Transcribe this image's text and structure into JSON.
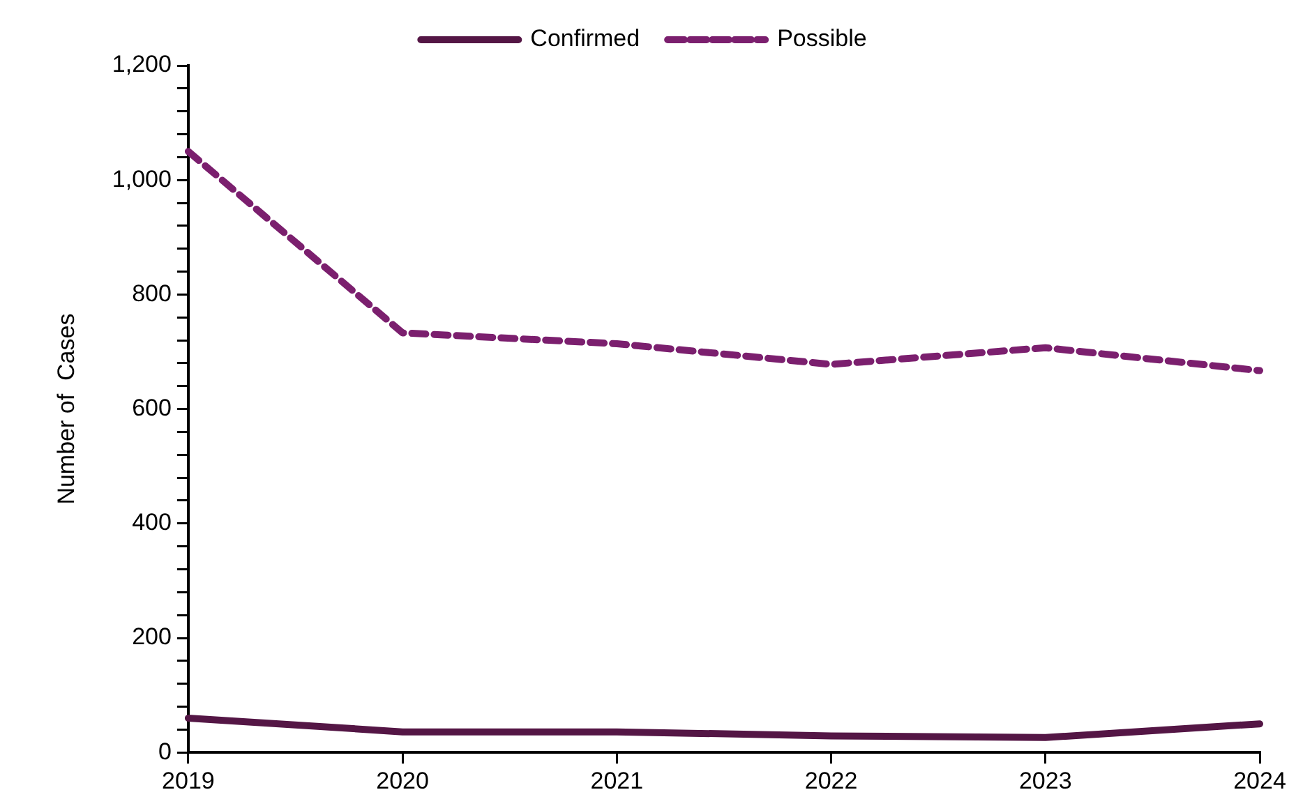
{
  "chart_data": {
    "type": "line",
    "ylabel": "Number of  Cases",
    "categories": [
      "2019",
      "2020",
      "2021",
      "2022",
      "2023",
      "2024"
    ],
    "series": [
      {
        "name": "Confirmed",
        "color": "#541645",
        "values": [
          60,
          36,
          36,
          29,
          26,
          50
        ],
        "line_style": "solid"
      },
      {
        "name": "Possible",
        "color": "#7b1f6e",
        "values": [
          1050,
          733,
          714,
          678,
          707,
          667
        ],
        "line_style": "dashed"
      }
    ],
    "ylim": [
      0,
      1200
    ],
    "yticks": [
      0,
      {
        "value": 40,
        "label": null
      },
      {
        "value": 80,
        "label": null
      },
      {
        "value": 120,
        "label": null
      },
      {
        "value": 160,
        "label": null
      },
      200,
      {
        "value": 240,
        "label": null
      },
      {
        "value": 280,
        "label": null
      },
      {
        "value": 320,
        "label": null
      },
      {
        "value": 360,
        "label": null
      },
      400,
      {
        "value": 440,
        "label": null
      },
      {
        "value": 480,
        "label": null
      },
      {
        "value": 520,
        "label": null
      },
      {
        "value": 560,
        "label": null
      },
      600,
      {
        "value": 640,
        "label": null
      },
      {
        "value": 680,
        "label": null
      },
      {
        "value": 720,
        "label": null
      },
      {
        "value": 760,
        "label": null
      },
      800,
      {
        "value": 840,
        "label": null
      },
      {
        "value": 880,
        "label": null
      },
      {
        "value": 920,
        "label": null
      },
      {
        "value": 960,
        "label": null
      },
      {
        "value": 1000,
        "label": "1,000"
      },
      {
        "value": 1040,
        "label": null
      },
      {
        "value": 1080,
        "label": null
      },
      {
        "value": 1120,
        "label": null
      },
      {
        "value": 1160,
        "label": null
      },
      {
        "value": 1200,
        "label": "1,200"
      }
    ],
    "grid": false,
    "legend": "top",
    "marker": "none"
  }
}
